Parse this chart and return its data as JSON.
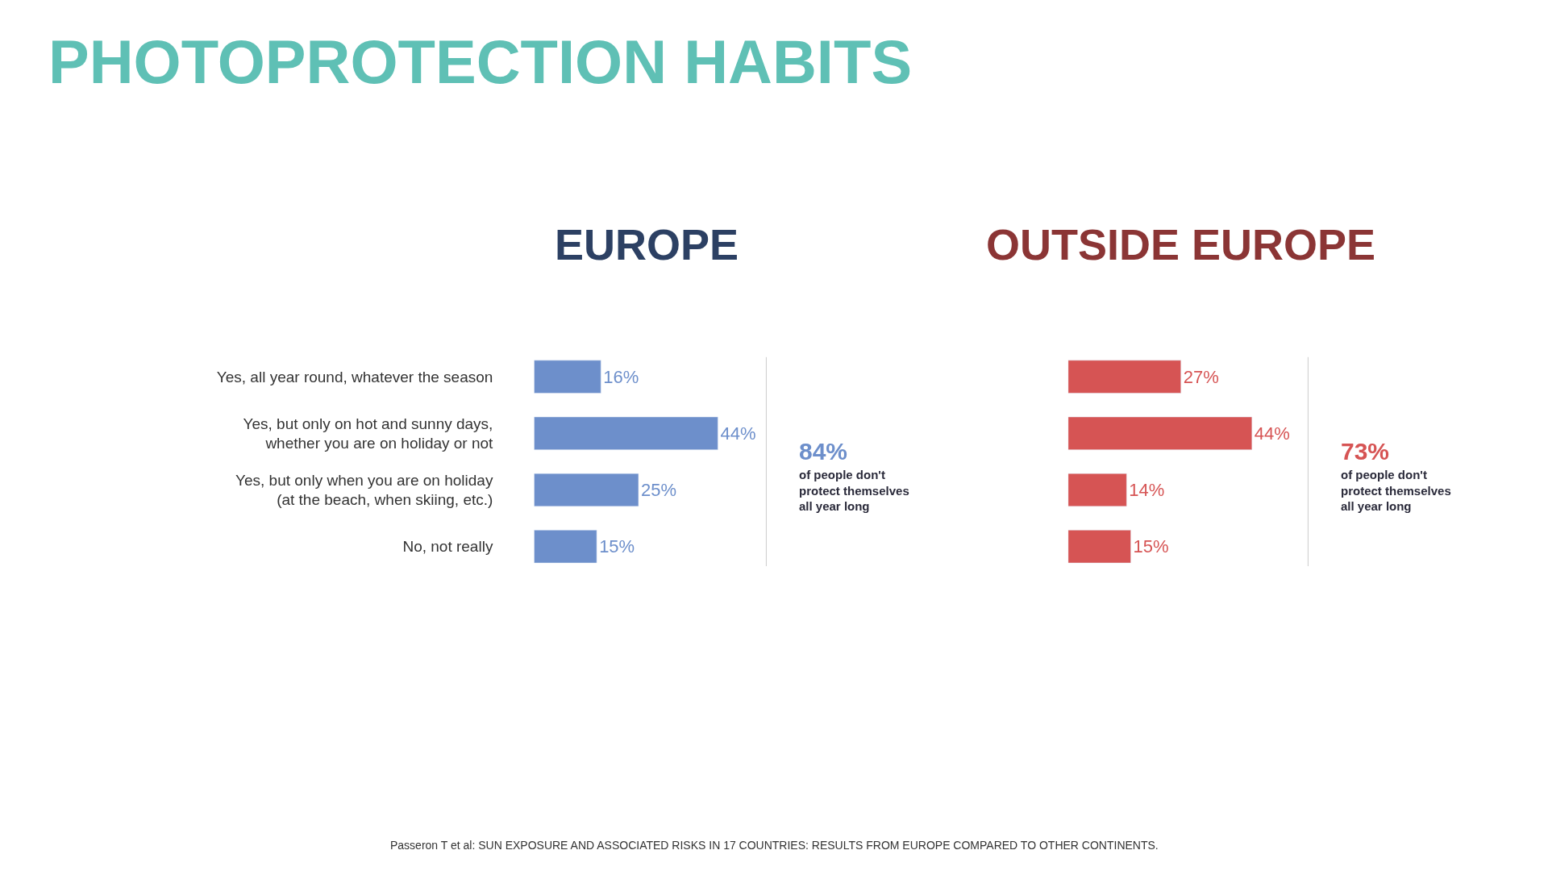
{
  "chart_data": [
    {
      "type": "other",
      "title": "PHOTOPROTECTION HABITS",
      "annotations": [
        "Passeron T et al: SUN EXPOSURE AND ASSOCIATED RISKS IN 17 COUNTRIES: RESULTS FROM EUROPE COMPARED TO OTHER CONTINENTS."
      ]
    },
    {
      "type": "bar",
      "orientation": "horizontal",
      "title": "EUROPE",
      "categories": [
        "Yes, all year round, whatever the season",
        "Yes, but only on hot and sunny days, whether you are on holiday or not",
        "Yes, but only when you are on holiday (at the beach, when skiing, etc.)",
        "No, not really"
      ],
      "values": [
        16,
        44,
        25,
        15
      ],
      "value_labels": [
        "16%",
        "44%",
        "25%",
        "15%"
      ],
      "color": "#6d8fcb",
      "tick_labels": "y",
      "annotations": [
        "84%",
        "of people don't protect themselves all year long"
      ]
    },
    {
      "type": "bar",
      "orientation": "horizontal",
      "title": "OUTSIDE EUROPE",
      "categories": [
        null,
        null,
        null,
        null
      ],
      "values": [
        27,
        44,
        14,
        15
      ],
      "value_labels": [
        "27%",
        "44%",
        "14%",
        "15%"
      ],
      "color": "#d65454",
      "tick_labels": false,
      "annotations": [
        "73%",
        "of people don't protect themselves all year long"
      ]
    }
  ]
}
